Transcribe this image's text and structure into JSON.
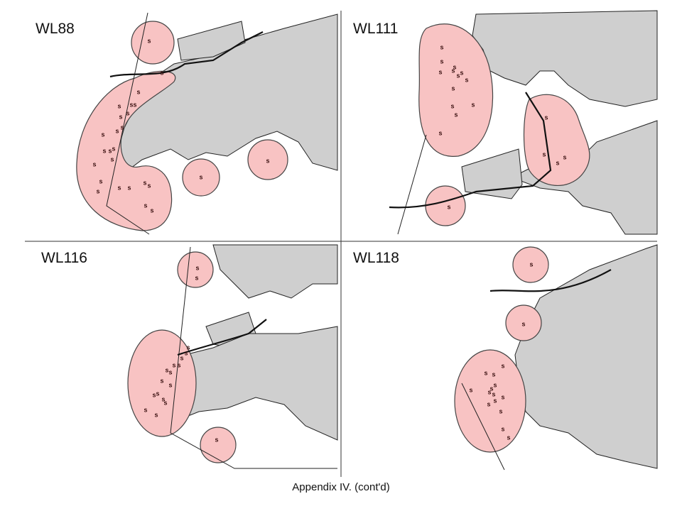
{
  "panels": [
    {
      "label": "WL88"
    },
    {
      "label": "WL111"
    },
    {
      "label": "WL116"
    },
    {
      "label": "WL118"
    }
  ],
  "sighting_marker": "s",
  "caption": "Appendix IV.  (cont'd)"
}
